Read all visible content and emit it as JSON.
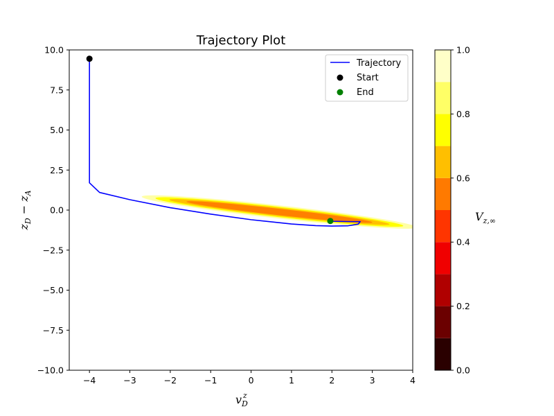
{
  "chart_data": [
    {
      "type": "line",
      "title": "Trajectory Plot",
      "xlabel": "v_D^z",
      "ylabel": "z_D − z_A",
      "xlim": [
        -4.5,
        4
      ],
      "ylim": [
        -10,
        10
      ],
      "xticks": [
        "−4",
        "−3",
        "−2",
        "−1",
        "0",
        "1",
        "2",
        "3",
        "4"
      ],
      "yticks": [
        "−10.0",
        "−7.5",
        "−5.0",
        "−2.5",
        "0.0",
        "2.5",
        "5.0",
        "7.5",
        "10.0"
      ],
      "xtick_values": [
        -4,
        -3,
        -2,
        -1,
        0,
        1,
        2,
        3,
        4
      ],
      "ytick_values": [
        -10,
        -7.5,
        -5,
        -2.5,
        0,
        2.5,
        5,
        7.5,
        10
      ],
      "grid": false,
      "legend_position": "upper right",
      "series": [
        {
          "name": "Trajectory",
          "kind": "line",
          "color": "#0000ff",
          "x": [
            -4.0,
            -4.0,
            -3.75,
            -3.0,
            -2.0,
            -1.0,
            0.0,
            1.0,
            1.6,
            2.0,
            2.4,
            2.65,
            2.7,
            2.5,
            2.0,
            1.95
          ],
          "y": [
            9.45,
            1.7,
            1.1,
            0.65,
            0.15,
            -0.25,
            -0.6,
            -0.87,
            -0.97,
            -1.0,
            -0.98,
            -0.88,
            -0.72,
            -0.72,
            -0.7,
            -0.68
          ]
        },
        {
          "name": "Start",
          "kind": "scatter",
          "color": "#000000",
          "x": [
            -4.0
          ],
          "y": [
            9.45
          ]
        },
        {
          "name": "End",
          "kind": "scatter",
          "color": "#008000",
          "x": [
            1.96
          ],
          "y": [
            -0.68
          ]
        }
      ],
      "contour": {
        "description": "filled contour band of V_z,∞ along the trajectory",
        "bands": [
          {
            "level": 0.85,
            "color": "#ffffa6"
          },
          {
            "level": 0.75,
            "color": "#ffff00"
          },
          {
            "level": 0.65,
            "color": "#ffc000"
          },
          {
            "level": 0.55,
            "color": "#ff8000"
          }
        ]
      }
    },
    {
      "type": "heatmap",
      "colorbar_label": "V_{z,∞}",
      "colorbar_range": [
        0,
        1
      ],
      "colorbar_ticks": [
        "0.0",
        "0.2",
        "0.4",
        "0.6",
        "0.8",
        "1.0"
      ],
      "colorbar_tick_values": [
        0,
        0.2,
        0.4,
        0.6,
        0.8,
        1.0
      ],
      "levels": [
        {
          "from": 0.0,
          "to": 0.1,
          "color": "#2a0000"
        },
        {
          "from": 0.1,
          "to": 0.2,
          "color": "#6b0000"
        },
        {
          "from": 0.2,
          "to": 0.3,
          "color": "#b00000"
        },
        {
          "from": 0.3,
          "to": 0.4,
          "color": "#f00000"
        },
        {
          "from": 0.4,
          "to": 0.5,
          "color": "#ff3500"
        },
        {
          "from": 0.5,
          "to": 0.6,
          "color": "#ff7a00"
        },
        {
          "from": 0.6,
          "to": 0.7,
          "color": "#ffbf00"
        },
        {
          "from": 0.7,
          "to": 0.8,
          "color": "#ffff00"
        },
        {
          "from": 0.8,
          "to": 0.9,
          "color": "#ffff66"
        },
        {
          "from": 0.9,
          "to": 1.0,
          "color": "#ffffc8"
        }
      ]
    }
  ]
}
